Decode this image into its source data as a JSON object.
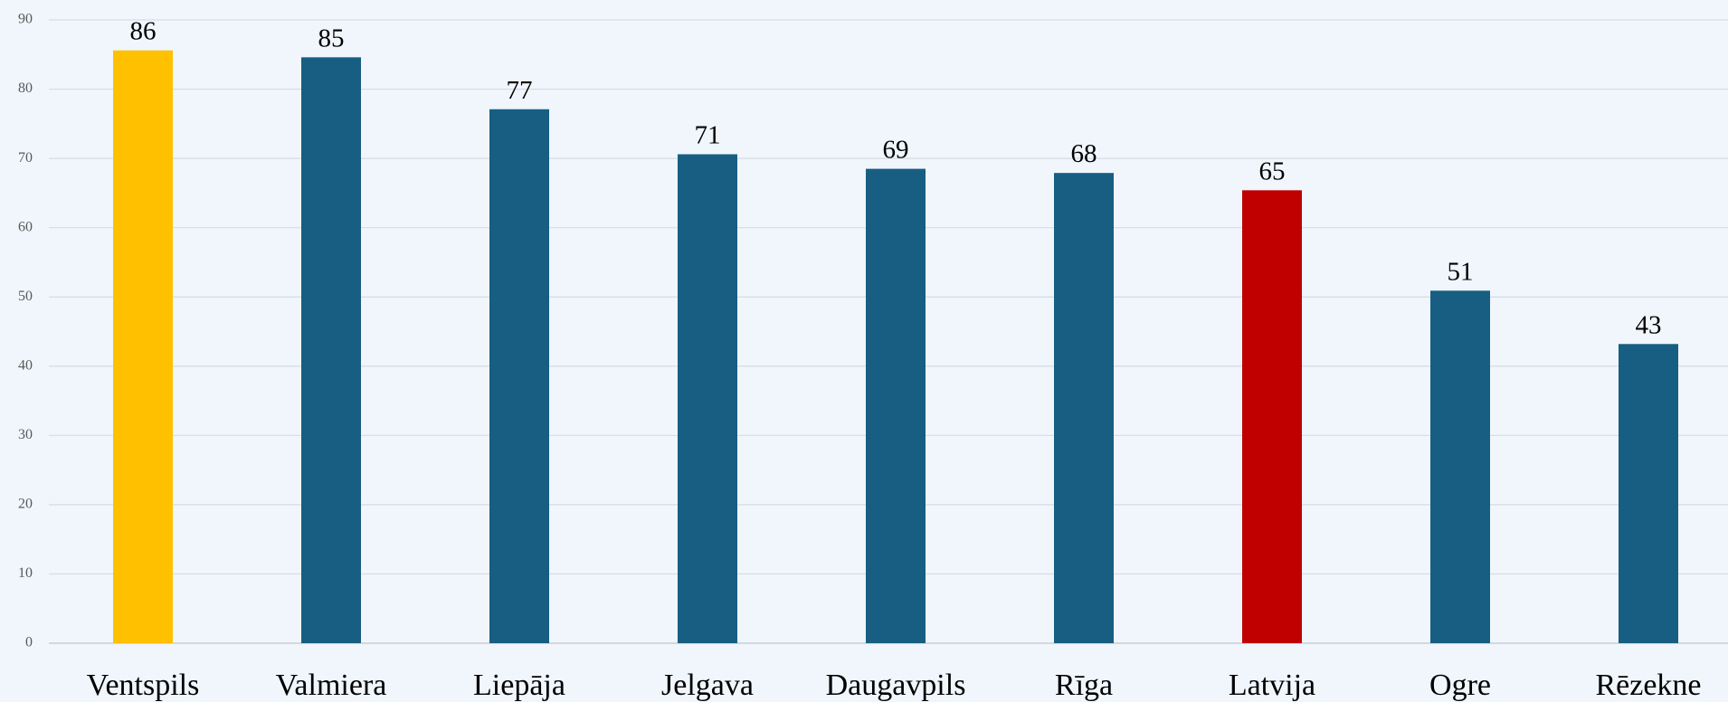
{
  "chart_data": {
    "type": "bar",
    "categories": [
      "Ventspils",
      "Valmiera",
      "Liepāja",
      "Jelgava",
      "Daugavpils",
      "Rīga",
      "Latvija",
      "Ogre",
      "Rēzekne"
    ],
    "values": [
      85.6,
      84.6,
      77.1,
      70.6,
      68.5,
      67.9,
      65.4,
      50.9,
      43.2
    ],
    "value_labels": [
      "86",
      "85",
      "77",
      "71",
      "69",
      "68",
      "65",
      "51",
      "43"
    ],
    "colors": [
      "#ffc000",
      "#175e82",
      "#175e82",
      "#175e82",
      "#175e82",
      "#175e82",
      "#c00000",
      "#175e82",
      "#175e82"
    ],
    "ylim": [
      0,
      90
    ],
    "yticks": [
      0,
      10,
      20,
      30,
      40,
      50,
      60,
      70,
      80,
      90
    ],
    "grid": true
  }
}
